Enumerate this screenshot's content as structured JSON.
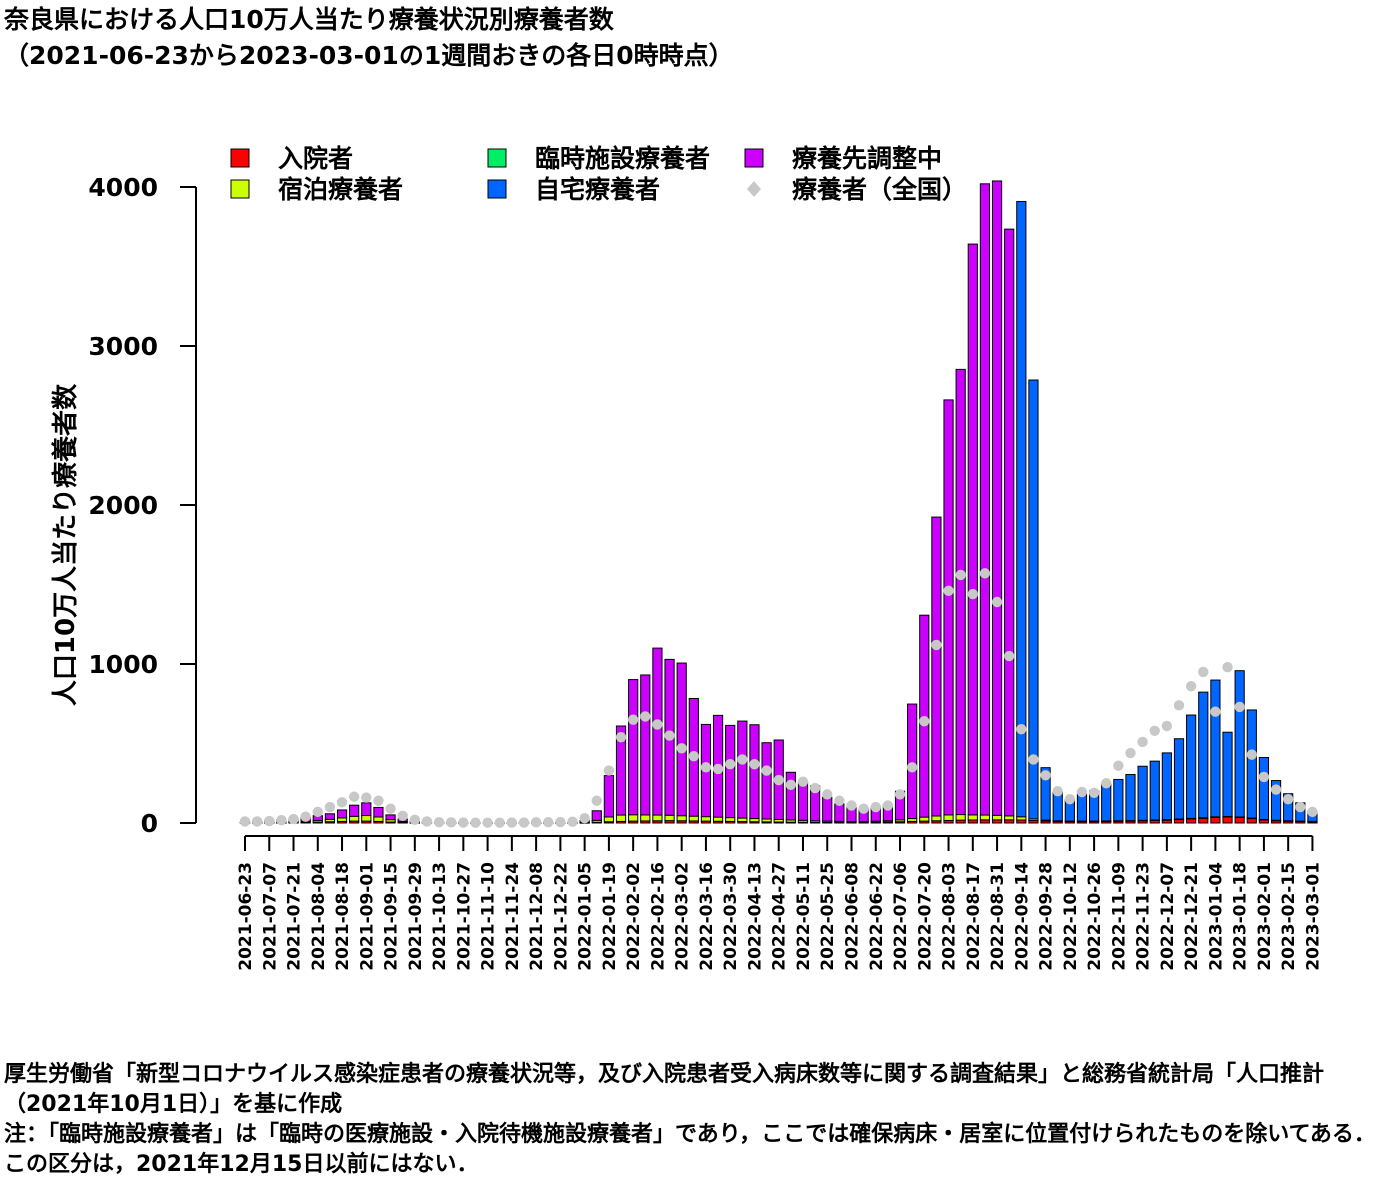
{
  "title_line1": "奈良県における人口10万人当たり療養状況別療養者数",
  "title_line2": "（2021-06-23から2023-03-01の1週間おきの各日0時時点）",
  "notes": [
    "厚生労働省「新型コロナウイルス感染症患者の療養状況等，及び入院患者受入病床数等に関する調査結果」と総務省統計局「人口推計（2021年10月1日）」を基に作成",
    "注：「臨時施設療養者」は「臨時の医療施設・入院待機施設療養者」であり，ここでは確保病床・居室に位置付けられたものを除いてある．この区分は，2021年12月15日以前にはない．"
  ],
  "chart_data": {
    "type": "bar",
    "stacked": true,
    "ylabel": "人口10万人当たり療養者数",
    "ylim": [
      0,
      4000
    ],
    "yticks": [
      0,
      1000,
      2000,
      3000,
      4000
    ],
    "x": [
      "2021-06-23",
      "2021-06-30",
      "2021-07-07",
      "2021-07-14",
      "2021-07-21",
      "2021-07-28",
      "2021-08-04",
      "2021-08-11",
      "2021-08-18",
      "2021-08-25",
      "2021-09-01",
      "2021-09-08",
      "2021-09-15",
      "2021-09-22",
      "2021-09-29",
      "2021-10-06",
      "2021-10-13",
      "2021-10-20",
      "2021-10-27",
      "2021-11-03",
      "2021-11-10",
      "2021-11-17",
      "2021-11-24",
      "2021-12-01",
      "2021-12-08",
      "2021-12-15",
      "2021-12-22",
      "2021-12-29",
      "2022-01-05",
      "2022-01-12",
      "2022-01-19",
      "2022-01-26",
      "2022-02-02",
      "2022-02-09",
      "2022-02-16",
      "2022-02-23",
      "2022-03-02",
      "2022-03-09",
      "2022-03-16",
      "2022-03-23",
      "2022-03-30",
      "2022-04-06",
      "2022-04-13",
      "2022-04-20",
      "2022-04-27",
      "2022-05-04",
      "2022-05-11",
      "2022-05-18",
      "2022-05-25",
      "2022-06-01",
      "2022-06-08",
      "2022-06-15",
      "2022-06-22",
      "2022-06-29",
      "2022-07-06",
      "2022-07-13",
      "2022-07-20",
      "2022-07-27",
      "2022-08-03",
      "2022-08-10",
      "2022-08-17",
      "2022-08-24",
      "2022-08-31",
      "2022-09-07",
      "2022-09-14",
      "2022-09-21",
      "2022-09-28",
      "2022-10-05",
      "2022-10-12",
      "2022-10-19",
      "2022-10-26",
      "2022-11-02",
      "2022-11-09",
      "2022-11-16",
      "2022-11-23",
      "2022-11-30",
      "2022-12-07",
      "2022-12-14",
      "2022-12-21",
      "2022-12-28",
      "2023-01-04",
      "2023-01-11",
      "2023-01-18",
      "2023-01-25",
      "2023-02-01",
      "2023-02-08",
      "2023-02-15",
      "2023-02-22",
      "2023-03-01"
    ],
    "xtick_labels": [
      "2021-06-23",
      "2021-07-07",
      "2021-07-21",
      "2021-08-04",
      "2021-08-18",
      "2021-09-01",
      "2021-09-15",
      "2021-09-29",
      "2021-10-13",
      "2021-10-27",
      "2021-11-10",
      "2021-11-24",
      "2021-12-08",
      "2021-12-22",
      "2022-01-05",
      "2022-01-19",
      "2022-02-02",
      "2022-02-16",
      "2022-03-02",
      "2022-03-16",
      "2022-03-30",
      "2022-04-13",
      "2022-04-27",
      "2022-05-11",
      "2022-05-25",
      "2022-06-08",
      "2022-06-22",
      "2022-07-06",
      "2022-07-20",
      "2022-08-03",
      "2022-08-17",
      "2022-08-31",
      "2022-09-14",
      "2022-09-28",
      "2022-10-12",
      "2022-10-26",
      "2022-11-09",
      "2022-11-23",
      "2022-12-07",
      "2022-12-21",
      "2023-01-04",
      "2023-01-18",
      "2023-02-01",
      "2023-02-15",
      "2023-03-01"
    ],
    "series": [
      {
        "name": "入院者",
        "color": "#ff0000",
        "values": [
          2,
          2,
          2,
          2,
          3,
          4,
          6,
          8,
          10,
          12,
          12,
          10,
          6,
          4,
          2,
          2,
          2,
          2,
          1,
          1,
          1,
          1,
          1,
          1,
          1,
          1,
          1,
          1,
          2,
          5,
          8,
          10,
          12,
          13,
          14,
          15,
          14,
          13,
          12,
          11,
          10,
          9,
          8,
          7,
          6,
          5,
          5,
          4,
          4,
          4,
          4,
          4,
          5,
          6,
          8,
          10,
          12,
          14,
          16,
          18,
          19,
          20,
          20,
          20,
          19,
          16,
          12,
          10,
          9,
          9,
          9,
          10,
          11,
          12,
          14,
          16,
          18,
          22,
          26,
          30,
          36,
          38,
          35,
          28,
          20,
          15,
          12,
          10,
          8
        ]
      },
      {
        "name": "宿泊療養者",
        "color": "#ccff00",
        "values": [
          1,
          1,
          1,
          2,
          3,
          5,
          10,
          15,
          22,
          30,
          35,
          28,
          15,
          6,
          3,
          2,
          1,
          1,
          1,
          1,
          1,
          1,
          1,
          1,
          1,
          1,
          1,
          1,
          3,
          12,
          30,
          40,
          40,
          38,
          36,
          34,
          32,
          30,
          28,
          26,
          24,
          22,
          20,
          18,
          16,
          14,
          12,
          10,
          8,
          6,
          5,
          5,
          6,
          8,
          12,
          18,
          25,
          30,
          35,
          35,
          32,
          30,
          28,
          25,
          20,
          10,
          6,
          4,
          3,
          3,
          3,
          3,
          3,
          3,
          3,
          3,
          3,
          3,
          3,
          3,
          3,
          3,
          3,
          3,
          2,
          2,
          2,
          2,
          2
        ]
      },
      {
        "name": "臨時施設療養者",
        "color": "#00ee66",
        "values": [
          0,
          0,
          0,
          0,
          0,
          0,
          0,
          0,
          0,
          0,
          0,
          0,
          0,
          0,
          0,
          0,
          0,
          0,
          0,
          0,
          0,
          0,
          0,
          0,
          0,
          0,
          0,
          0,
          0,
          0,
          0,
          0,
          0,
          0,
          0,
          0,
          0,
          0,
          0,
          0,
          0,
          0,
          0,
          0,
          0,
          0,
          0,
          0,
          0,
          0,
          0,
          0,
          0,
          0,
          0,
          0,
          0,
          0,
          0,
          0,
          0,
          0,
          0,
          0,
          0,
          0,
          0,
          0,
          0,
          0,
          0,
          0,
          0,
          0,
          0,
          0,
          0,
          0,
          0,
          0,
          0,
          0,
          0,
          0,
          0,
          0,
          0,
          0,
          0
        ]
      },
      {
        "name": "自宅療養者",
        "color": "#0066ff",
        "values": [
          0,
          0,
          0,
          0,
          0,
          0,
          0,
          0,
          0,
          0,
          0,
          0,
          0,
          0,
          0,
          0,
          0,
          0,
          0,
          0,
          0,
          0,
          0,
          0,
          0,
          0,
          0,
          0,
          0,
          0,
          0,
          0,
          0,
          0,
          0,
          0,
          0,
          0,
          0,
          0,
          0,
          0,
          0,
          0,
          0,
          0,
          0,
          0,
          0,
          0,
          0,
          0,
          0,
          0,
          0,
          0,
          0,
          0,
          0,
          0,
          0,
          0,
          0,
          0,
          3870,
          2760,
          330,
          180,
          135,
          170,
          190,
          230,
          260,
          290,
          340,
          370,
          420,
          505,
          650,
          790,
          860,
          530,
          920,
          680,
          390,
          250,
          170,
          115,
          60
        ]
      },
      {
        "name": "療養先調整中",
        "color": "#cc00ff",
        "values": [
          5,
          8,
          12,
          16,
          20,
          25,
          30,
          35,
          50,
          70,
          80,
          60,
          30,
          15,
          5,
          3,
          2,
          1,
          1,
          1,
          1,
          1,
          1,
          1,
          1,
          1,
          1,
          2,
          10,
          60,
          260,
          560,
          850,
          880,
          1050,
          980,
          960,
          740,
          580,
          640,
          580,
          610,
          590,
          480,
          500,
          300,
          240,
          220,
          150,
          110,
          90,
          80,
          90,
          100,
          180,
          720,
          1270,
          1880,
          2610,
          2800,
          3590,
          3970,
          3990,
          3690,
          0,
          0,
          0,
          0,
          0,
          0,
          0,
          0,
          0,
          0,
          0,
          0,
          0,
          0,
          0,
          0,
          0,
          0,
          0,
          0,
          0,
          0,
          0,
          0,
          0
        ]
      },
      {
        "name": "療養者（全国）",
        "color": "#c8c8c8",
        "kind": "points",
        "values": [
          10,
          10,
          12,
          18,
          25,
          40,
          70,
          100,
          130,
          165,
          160,
          140,
          90,
          45,
          20,
          10,
          5,
          4,
          3,
          2,
          2,
          2,
          3,
          3,
          4,
          5,
          6,
          8,
          30,
          140,
          330,
          540,
          650,
          670,
          620,
          550,
          470,
          420,
          350,
          340,
          370,
          400,
          370,
          330,
          270,
          240,
          260,
          220,
          180,
          140,
          110,
          90,
          100,
          110,
          180,
          350,
          640,
          1120,
          1460,
          1560,
          1440,
          1570,
          1390,
          1050,
          590,
          400,
          300,
          200,
          150,
          195,
          190,
          250,
          360,
          440,
          510,
          580,
          610,
          740,
          860,
          950,
          700,
          980,
          730,
          430,
          290,
          210,
          150,
          100,
          70
        ]
      }
    ],
    "legend": [
      "入院者",
      "宿泊療養者",
      "臨時施設療養者",
      "自宅療養者",
      "療養先調整中",
      "療養者（全国）"
    ],
    "legend_position": "top"
  }
}
